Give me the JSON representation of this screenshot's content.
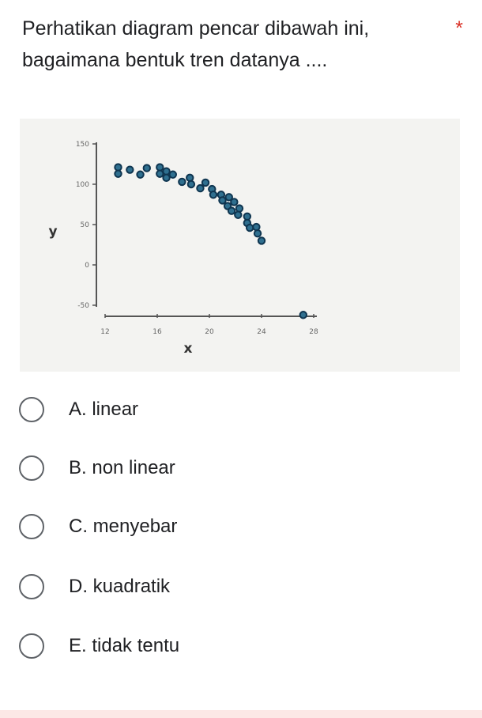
{
  "question": {
    "text_line1": "Perhatikan diagram pencar dibawah ini,",
    "text_line2": "bagaimana bentuk tren datanya ....",
    "required_marker": "*"
  },
  "options": [
    {
      "label": "A. linear"
    },
    {
      "label": "B. non linear"
    },
    {
      "label": "C. menyebar"
    },
    {
      "label": "D. kuadratik"
    },
    {
      "label": "E. tidak tentu"
    }
  ],
  "chart_data": {
    "type": "scatter",
    "xlabel": "x",
    "ylabel": "y",
    "xlim": [
      12,
      28
    ],
    "ylim": [
      -50,
      150
    ],
    "xticks": [
      "12",
      "16",
      "20",
      "24",
      "28"
    ],
    "yticks": [
      "150",
      "100",
      "50",
      "0",
      "-50"
    ],
    "color": "#1f4e79",
    "points": [
      [
        13.0,
        121
      ],
      [
        13.0,
        113
      ],
      [
        13.9,
        118
      ],
      [
        14.7,
        112
      ],
      [
        15.2,
        120
      ],
      [
        16.2,
        121
      ],
      [
        16.2,
        113
      ],
      [
        16.7,
        116
      ],
      [
        16.7,
        108
      ],
      [
        17.2,
        112
      ],
      [
        17.9,
        103
      ],
      [
        18.5,
        108
      ],
      [
        18.6,
        100
      ],
      [
        19.3,
        95
      ],
      [
        19.7,
        102
      ],
      [
        20.2,
        94
      ],
      [
        20.3,
        87
      ],
      [
        20.9,
        87
      ],
      [
        21.0,
        80
      ],
      [
        21.5,
        84
      ],
      [
        21.4,
        73
      ],
      [
        21.7,
        67
      ],
      [
        21.9,
        78
      ],
      [
        22.3,
        70
      ],
      [
        22.2,
        62
      ],
      [
        22.9,
        60
      ],
      [
        22.9,
        52
      ],
      [
        23.1,
        46
      ],
      [
        23.6,
        47
      ],
      [
        23.7,
        39
      ],
      [
        24.0,
        30
      ],
      [
        27.2,
        -62
      ]
    ]
  }
}
